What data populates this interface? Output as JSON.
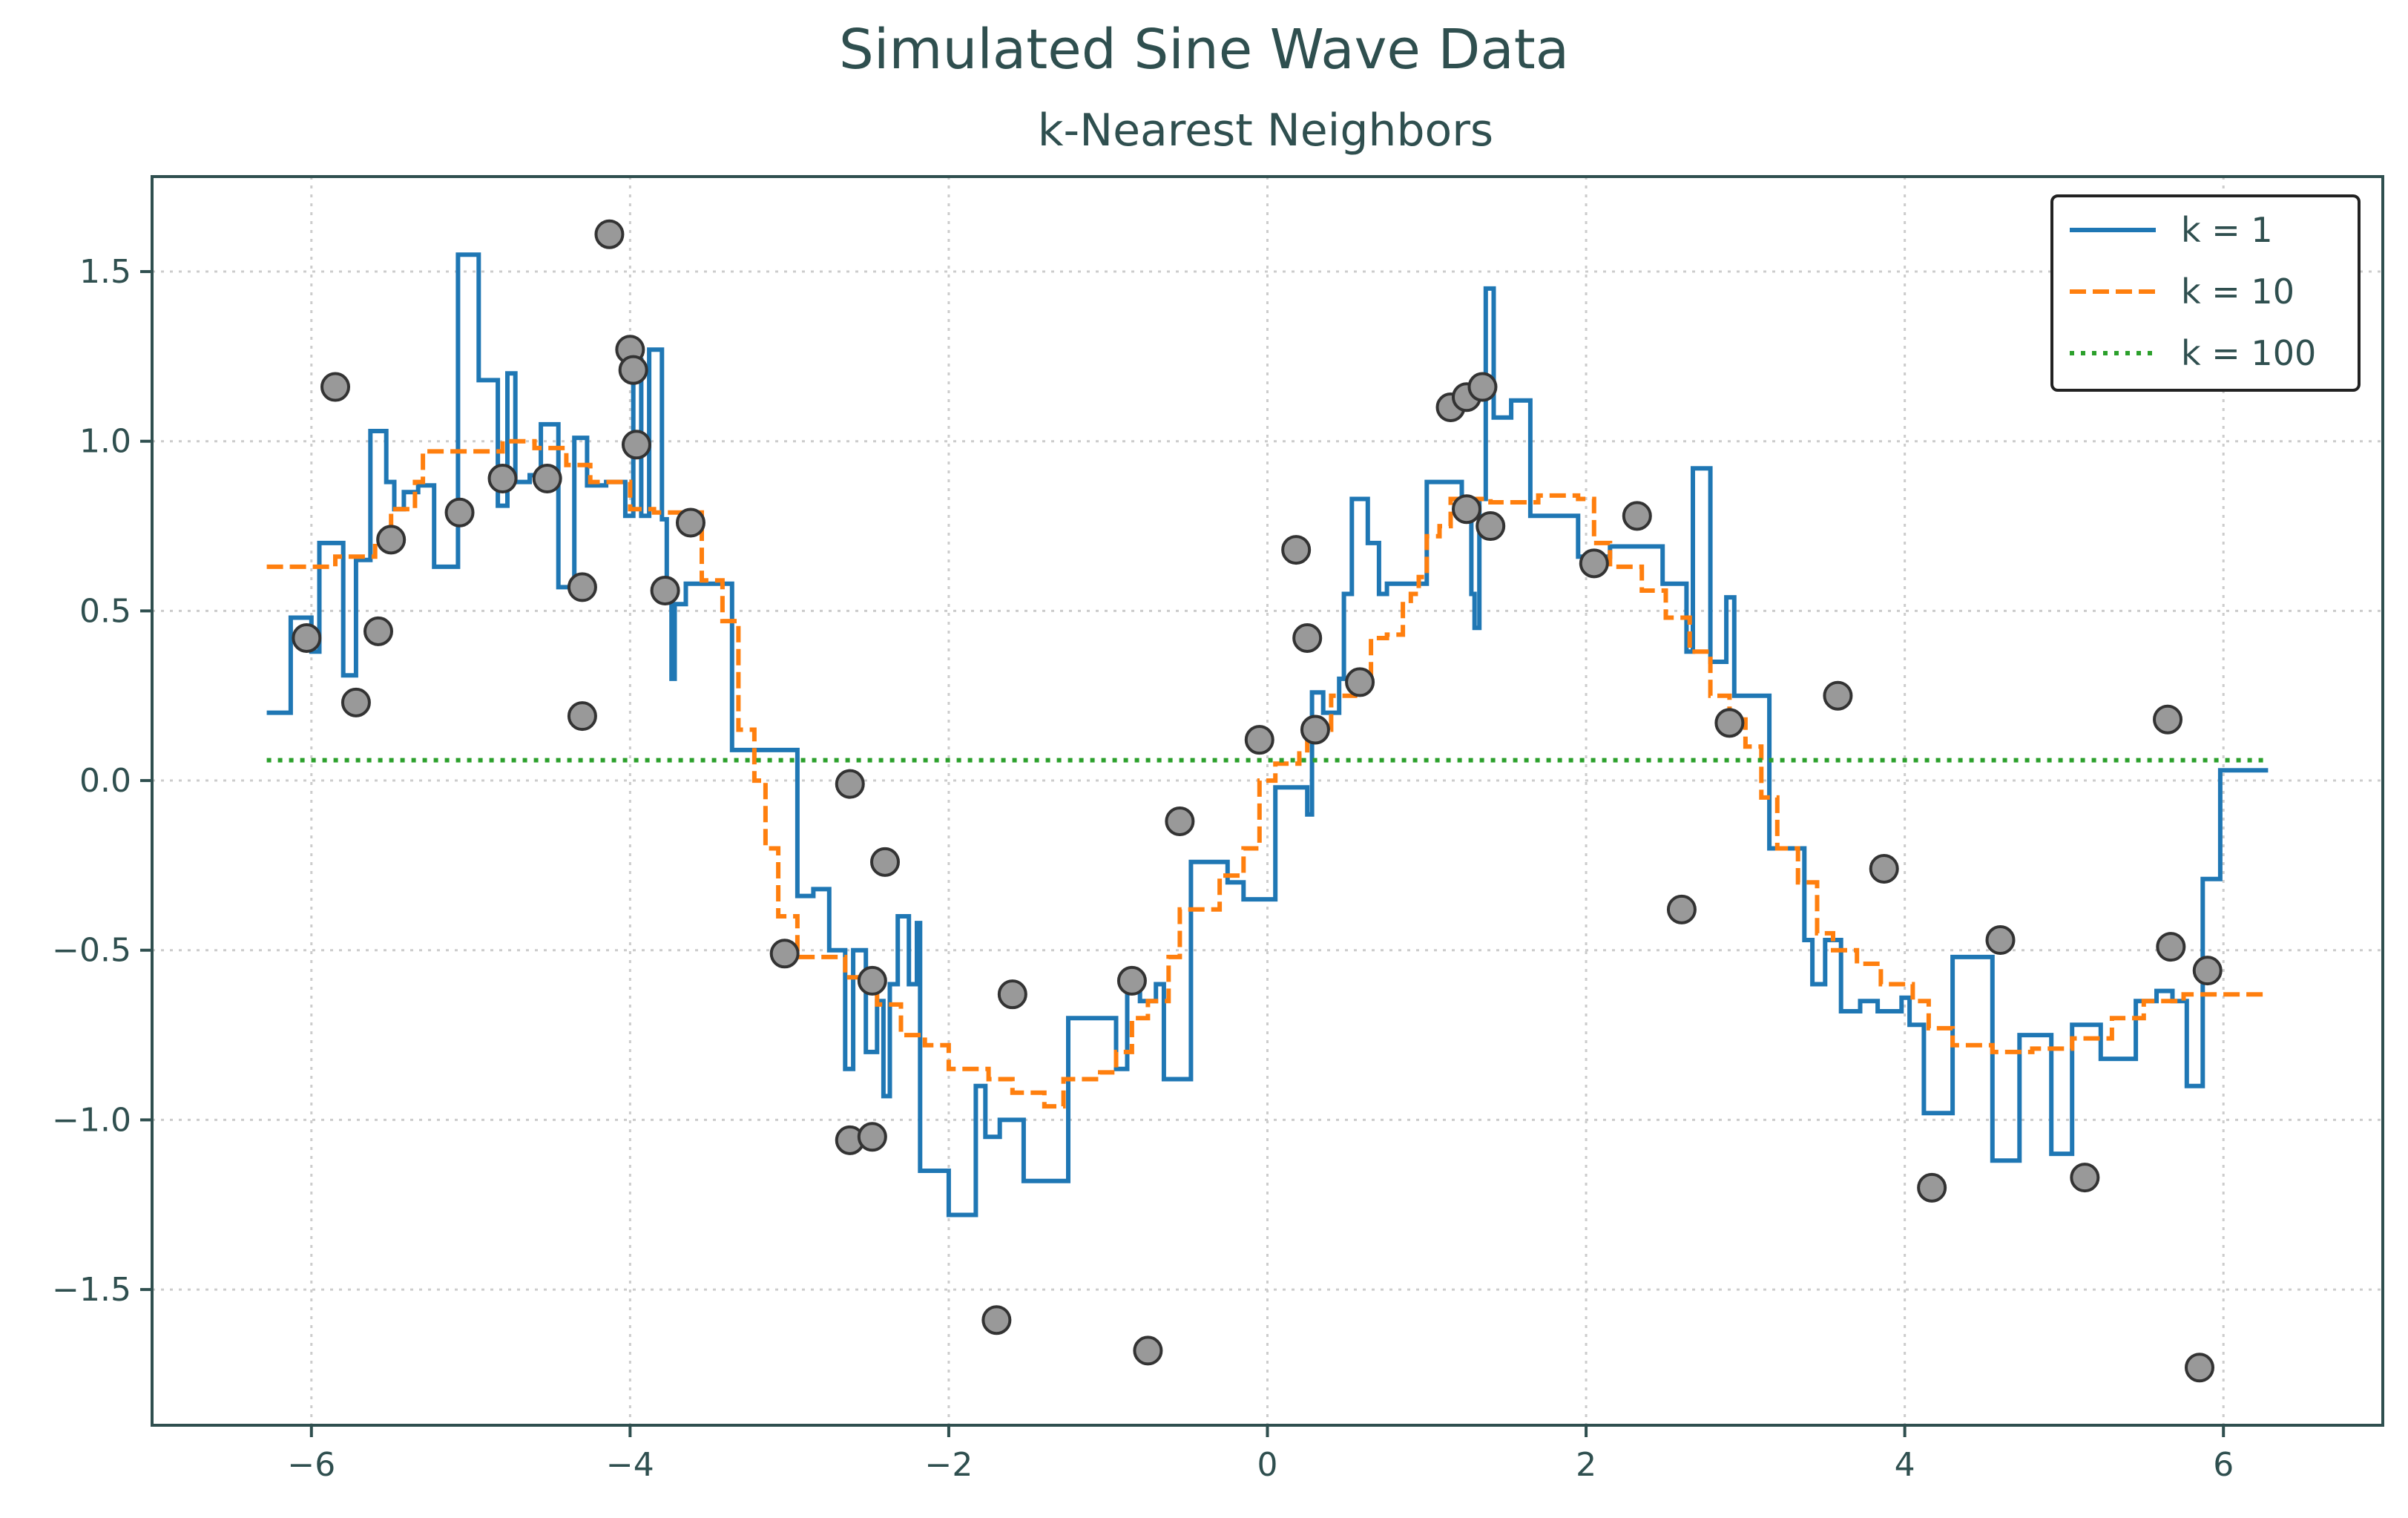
{
  "chart_data": {
    "type": "line",
    "title": "Simulated Sine Wave Data",
    "subtitle": "k-Nearest Neighbors",
    "xlabel": "",
    "ylabel": "",
    "xlim": [
      -7.0,
      7.0
    ],
    "ylim": [
      -1.9,
      1.78
    ],
    "xticks": [
      -6,
      -4,
      -2,
      0,
      2,
      4,
      6
    ],
    "yticks": [
      -1.5,
      -1.0,
      -0.5,
      0.0,
      0.5,
      1.0,
      1.5
    ],
    "xtick_labels": [
      "−6",
      "−4",
      "−2",
      "0",
      "2",
      "4",
      "6"
    ],
    "ytick_labels": [
      "−1.5",
      "−1.0",
      "−0.5",
      "0.0",
      "0.5",
      "1.0",
      "1.5"
    ],
    "grid": true,
    "legend_position": "top-right",
    "colors": {
      "axis": "#2f4f4f",
      "k1": "#1f77b4",
      "k10": "#ff7f0e",
      "k100": "#2ca02c",
      "points_fill": "#999999",
      "points_edge": "#333333"
    },
    "series": [
      {
        "name": "k = 1",
        "style": "solid",
        "color": "#1f77b4",
        "step": true,
        "points": [
          [
            -6.28,
            0.2
          ],
          [
            -6.13,
            0.48
          ],
          [
            -6.0,
            0.38
          ],
          [
            -5.95,
            0.7
          ],
          [
            -5.8,
            0.31
          ],
          [
            -5.72,
            0.65
          ],
          [
            -5.63,
            1.03
          ],
          [
            -5.53,
            0.88
          ],
          [
            -5.48,
            0.8
          ],
          [
            -5.42,
            0.85
          ],
          [
            -5.33,
            0.87
          ],
          [
            -5.23,
            0.63
          ],
          [
            -5.08,
            1.55
          ],
          [
            -4.95,
            1.18
          ],
          [
            -4.83,
            0.81
          ],
          [
            -4.77,
            1.2
          ],
          [
            -4.72,
            0.88
          ],
          [
            -4.63,
            0.9
          ],
          [
            -4.56,
            1.05
          ],
          [
            -4.45,
            0.57
          ],
          [
            -4.35,
            1.01
          ],
          [
            -4.27,
            0.87
          ],
          [
            -4.15,
            0.88
          ],
          [
            -4.03,
            0.78
          ],
          [
            -3.98,
            1.24
          ],
          [
            -3.93,
            0.78
          ],
          [
            -3.88,
            1.27
          ],
          [
            -3.8,
            0.77
          ],
          [
            -3.77,
            0.57
          ],
          [
            -3.74,
            0.3
          ],
          [
            -3.72,
            0.52
          ],
          [
            -3.65,
            0.58
          ],
          [
            -3.45,
            0.58
          ],
          [
            -3.36,
            0.09
          ],
          [
            -2.95,
            -0.34
          ],
          [
            -2.85,
            -0.32
          ],
          [
            -2.75,
            -0.5
          ],
          [
            -2.65,
            -0.85
          ],
          [
            -2.6,
            -0.5
          ],
          [
            -2.52,
            -0.8
          ],
          [
            -2.45,
            -0.65
          ],
          [
            -2.41,
            -0.93
          ],
          [
            -2.37,
            -0.6
          ],
          [
            -2.32,
            -0.4
          ],
          [
            -2.25,
            -0.6
          ],
          [
            -2.2,
            -0.42
          ],
          [
            -2.18,
            -1.15
          ],
          [
            -2.0,
            -1.28
          ],
          [
            -1.83,
            -0.9
          ],
          [
            -1.77,
            -1.05
          ],
          [
            -1.68,
            -1.0
          ],
          [
            -1.53,
            -1.18
          ],
          [
            -1.25,
            -0.7
          ],
          [
            -0.95,
            -0.85
          ],
          [
            -0.88,
            -0.62
          ],
          [
            -0.8,
            -0.65
          ],
          [
            -0.7,
            -0.6
          ],
          [
            -0.65,
            -0.88
          ],
          [
            -0.48,
            -0.24
          ],
          [
            -0.25,
            -0.3
          ],
          [
            -0.15,
            -0.35
          ],
          [
            0.05,
            -0.02
          ],
          [
            0.25,
            -0.1
          ],
          [
            0.28,
            0.26
          ],
          [
            0.35,
            0.2
          ],
          [
            0.45,
            0.3
          ],
          [
            0.48,
            0.55
          ],
          [
            0.53,
            0.83
          ],
          [
            0.63,
            0.7
          ],
          [
            0.7,
            0.55
          ],
          [
            0.75,
            0.58
          ],
          [
            1.0,
            0.88
          ],
          [
            1.22,
            0.8
          ],
          [
            1.28,
            0.55
          ],
          [
            1.3,
            0.45
          ],
          [
            1.33,
            0.83
          ],
          [
            1.37,
            1.45
          ],
          [
            1.42,
            1.07
          ],
          [
            1.53,
            1.12
          ],
          [
            1.65,
            0.78
          ],
          [
            1.95,
            0.66
          ],
          [
            2.15,
            0.69
          ],
          [
            2.48,
            0.58
          ],
          [
            2.63,
            0.38
          ],
          [
            2.67,
            0.92
          ],
          [
            2.78,
            0.35
          ],
          [
            2.88,
            0.54
          ],
          [
            2.93,
            0.25
          ],
          [
            3.15,
            -0.2
          ],
          [
            3.37,
            -0.47
          ],
          [
            3.42,
            -0.6
          ],
          [
            3.5,
            -0.47
          ],
          [
            3.6,
            -0.68
          ],
          [
            3.72,
            -0.65
          ],
          [
            3.83,
            -0.68
          ],
          [
            3.98,
            -0.64
          ],
          [
            4.03,
            -0.72
          ],
          [
            4.12,
            -0.98
          ],
          [
            4.3,
            -0.52
          ],
          [
            4.55,
            -1.12
          ],
          [
            4.72,
            -0.75
          ],
          [
            4.92,
            -1.1
          ],
          [
            5.05,
            -0.72
          ],
          [
            5.23,
            -0.82
          ],
          [
            5.45,
            -0.65
          ],
          [
            5.58,
            -0.62
          ],
          [
            5.68,
            -0.65
          ],
          [
            5.77,
            -0.9
          ],
          [
            5.87,
            -0.29
          ],
          [
            5.98,
            0.03
          ],
          [
            6.28,
            0.03
          ]
        ]
      },
      {
        "name": "k = 10",
        "style": "dashed",
        "color": "#ff7f0e",
        "step": true,
        "points": [
          [
            -6.28,
            0.63
          ],
          [
            -5.85,
            0.66
          ],
          [
            -5.6,
            0.7
          ],
          [
            -5.5,
            0.8
          ],
          [
            -5.35,
            0.88
          ],
          [
            -5.3,
            0.97
          ],
          [
            -4.95,
            0.97
          ],
          [
            -4.8,
            1.0
          ],
          [
            -4.6,
            0.98
          ],
          [
            -4.4,
            0.93
          ],
          [
            -4.25,
            0.88
          ],
          [
            -4.0,
            0.8
          ],
          [
            -3.85,
            0.79
          ],
          [
            -3.55,
            0.59
          ],
          [
            -3.42,
            0.47
          ],
          [
            -3.32,
            0.15
          ],
          [
            -3.22,
            0.0
          ],
          [
            -3.15,
            -0.2
          ],
          [
            -3.07,
            -0.4
          ],
          [
            -2.95,
            -0.52
          ],
          [
            -2.65,
            -0.58
          ],
          [
            -2.45,
            -0.66
          ],
          [
            -2.3,
            -0.75
          ],
          [
            -2.15,
            -0.78
          ],
          [
            -2.0,
            -0.85
          ],
          [
            -1.75,
            -0.88
          ],
          [
            -1.6,
            -0.92
          ],
          [
            -1.4,
            -0.96
          ],
          [
            -1.28,
            -0.88
          ],
          [
            -1.05,
            -0.86
          ],
          [
            -0.95,
            -0.8
          ],
          [
            -0.85,
            -0.7
          ],
          [
            -0.75,
            -0.65
          ],
          [
            -0.62,
            -0.52
          ],
          [
            -0.55,
            -0.38
          ],
          [
            -0.3,
            -0.28
          ],
          [
            -0.15,
            -0.2
          ],
          [
            -0.05,
            0.0
          ],
          [
            0.05,
            0.05
          ],
          [
            0.2,
            0.08
          ],
          [
            0.25,
            0.15
          ],
          [
            0.4,
            0.25
          ],
          [
            0.55,
            0.3
          ],
          [
            0.65,
            0.42
          ],
          [
            0.75,
            0.43
          ],
          [
            0.85,
            0.52
          ],
          [
            0.9,
            0.55
          ],
          [
            0.95,
            0.6
          ],
          [
            1.0,
            0.72
          ],
          [
            1.08,
            0.75
          ],
          [
            1.15,
            0.83
          ],
          [
            1.4,
            0.82
          ],
          [
            1.7,
            0.84
          ],
          [
            1.95,
            0.83
          ],
          [
            2.05,
            0.7
          ],
          [
            2.15,
            0.63
          ],
          [
            2.35,
            0.56
          ],
          [
            2.5,
            0.48
          ],
          [
            2.65,
            0.38
          ],
          [
            2.78,
            0.25
          ],
          [
            2.9,
            0.18
          ],
          [
            3.0,
            0.1
          ],
          [
            3.1,
            -0.05
          ],
          [
            3.2,
            -0.2
          ],
          [
            3.33,
            -0.3
          ],
          [
            3.45,
            -0.45
          ],
          [
            3.55,
            -0.5
          ],
          [
            3.7,
            -0.54
          ],
          [
            3.85,
            -0.6
          ],
          [
            4.05,
            -0.65
          ],
          [
            4.15,
            -0.73
          ],
          [
            4.3,
            -0.78
          ],
          [
            4.55,
            -0.8
          ],
          [
            4.8,
            -0.79
          ],
          [
            5.05,
            -0.76
          ],
          [
            5.3,
            -0.7
          ],
          [
            5.5,
            -0.65
          ],
          [
            5.75,
            -0.63
          ],
          [
            6.28,
            -0.63
          ]
        ]
      },
      {
        "name": "k = 100",
        "style": "dotted",
        "color": "#2ca02c",
        "step": false,
        "points": [
          [
            -6.28,
            0.06
          ],
          [
            6.28,
            0.06
          ]
        ]
      }
    ],
    "scatter": [
      [
        -6.03,
        0.42
      ],
      [
        -5.85,
        1.16
      ],
      [
        -5.72,
        0.23
      ],
      [
        -5.58,
        0.44
      ],
      [
        -5.5,
        0.71
      ],
      [
        -5.07,
        0.79
      ],
      [
        -4.8,
        0.89
      ],
      [
        -4.52,
        0.89
      ],
      [
        -4.3,
        0.57
      ],
      [
        -4.3,
        0.19
      ],
      [
        -4.13,
        1.61
      ],
      [
        -4.0,
        1.27
      ],
      [
        -3.98,
        1.21
      ],
      [
        -3.96,
        0.99
      ],
      [
        -3.78,
        0.56
      ],
      [
        -3.62,
        0.76
      ],
      [
        -3.03,
        -0.51
      ],
      [
        -2.62,
        -0.01
      ],
      [
        -2.62,
        -1.06
      ],
      [
        -2.48,
        -0.59
      ],
      [
        -2.48,
        -1.05
      ],
      [
        -2.4,
        -0.24
      ],
      [
        -1.7,
        -1.59
      ],
      [
        -1.6,
        -0.63
      ],
      [
        -0.85,
        -0.59
      ],
      [
        -0.75,
        -1.68
      ],
      [
        -0.55,
        -0.12
      ],
      [
        -0.05,
        0.12
      ],
      [
        0.18,
        0.68
      ],
      [
        0.25,
        0.42
      ],
      [
        0.3,
        0.15
      ],
      [
        0.58,
        0.29
      ],
      [
        1.15,
        1.1
      ],
      [
        1.25,
        1.13
      ],
      [
        1.25,
        0.8
      ],
      [
        1.35,
        1.16
      ],
      [
        1.4,
        0.75
      ],
      [
        2.05,
        0.64
      ],
      [
        2.32,
        0.78
      ],
      [
        2.6,
        -0.38
      ],
      [
        2.9,
        0.17
      ],
      [
        3.58,
        0.25
      ],
      [
        3.87,
        -0.26
      ],
      [
        4.17,
        -1.2
      ],
      [
        4.6,
        -0.47
      ],
      [
        5.13,
        -1.17
      ],
      [
        5.65,
        0.18
      ],
      [
        5.67,
        -0.49
      ],
      [
        5.85,
        -1.73
      ],
      [
        5.9,
        -0.56
      ]
    ]
  }
}
